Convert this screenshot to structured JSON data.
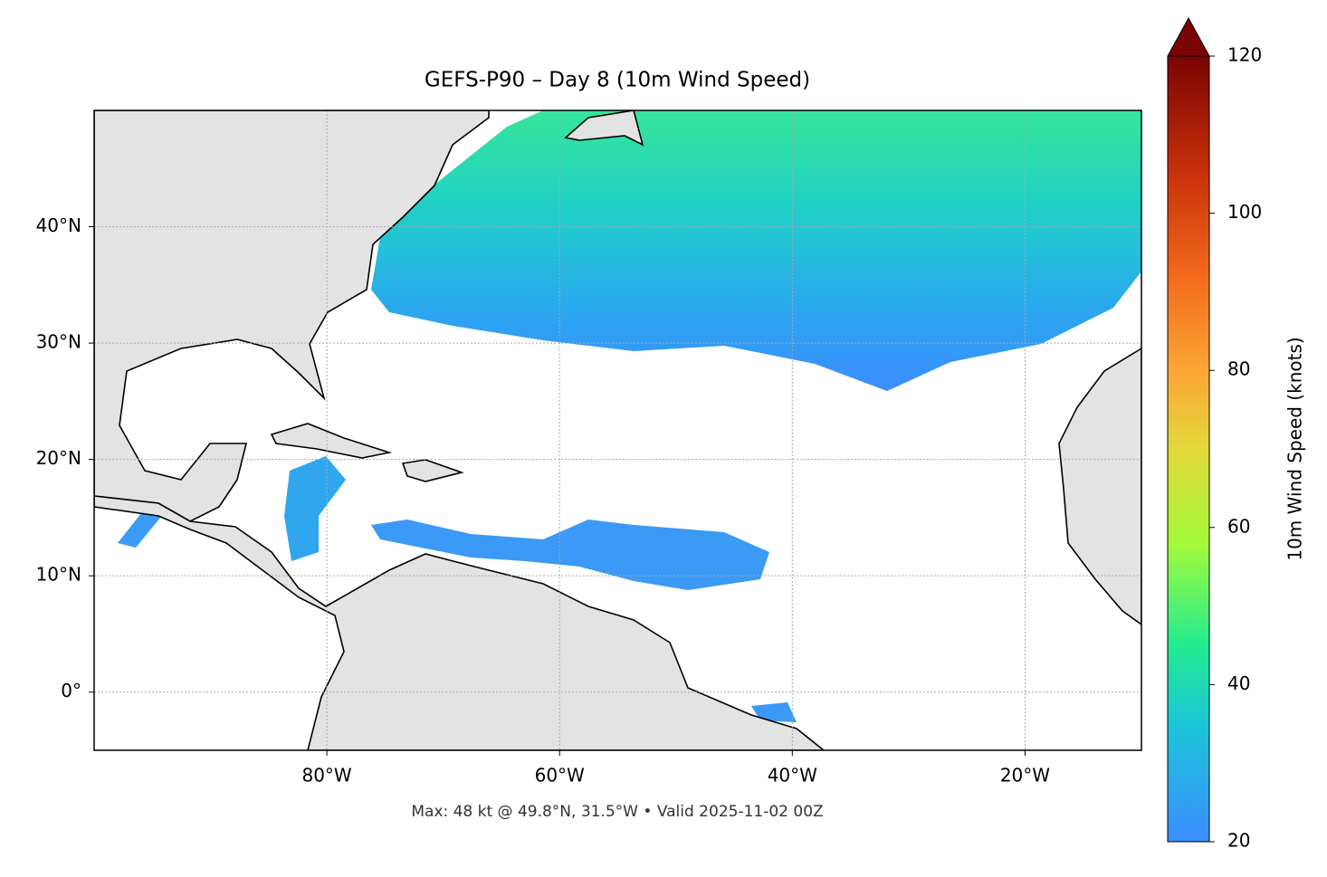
{
  "chart_data": {
    "type": "map",
    "title": "GEFS-P90 – Day 8 (10m Wind Speed)",
    "footer": "Max: 48 kt @ 49.8°N, 31.5°W • Valid 2025-11-02 00Z",
    "xlim": [
      -100,
      -10
    ],
    "ylim": [
      -5,
      50
    ],
    "xticks": [
      {
        "value": -80,
        "label": "80°W"
      },
      {
        "value": -60,
        "label": "60°W"
      },
      {
        "value": -40,
        "label": "40°W"
      },
      {
        "value": -20,
        "label": "20°W"
      }
    ],
    "yticks": [
      {
        "value": 0,
        "label": "0°"
      },
      {
        "value": 10,
        "label": "10°N"
      },
      {
        "value": 20,
        "label": "20°N"
      },
      {
        "value": 30,
        "label": "30°N"
      },
      {
        "value": 40,
        "label": "40°N"
      }
    ],
    "grid": true,
    "colorbar": {
      "label": "10m Wind Speed (knots)",
      "lim": [
        20,
        120
      ],
      "ticks": [
        20,
        40,
        60,
        80,
        100,
        120
      ],
      "extend": "max"
    }
  }
}
